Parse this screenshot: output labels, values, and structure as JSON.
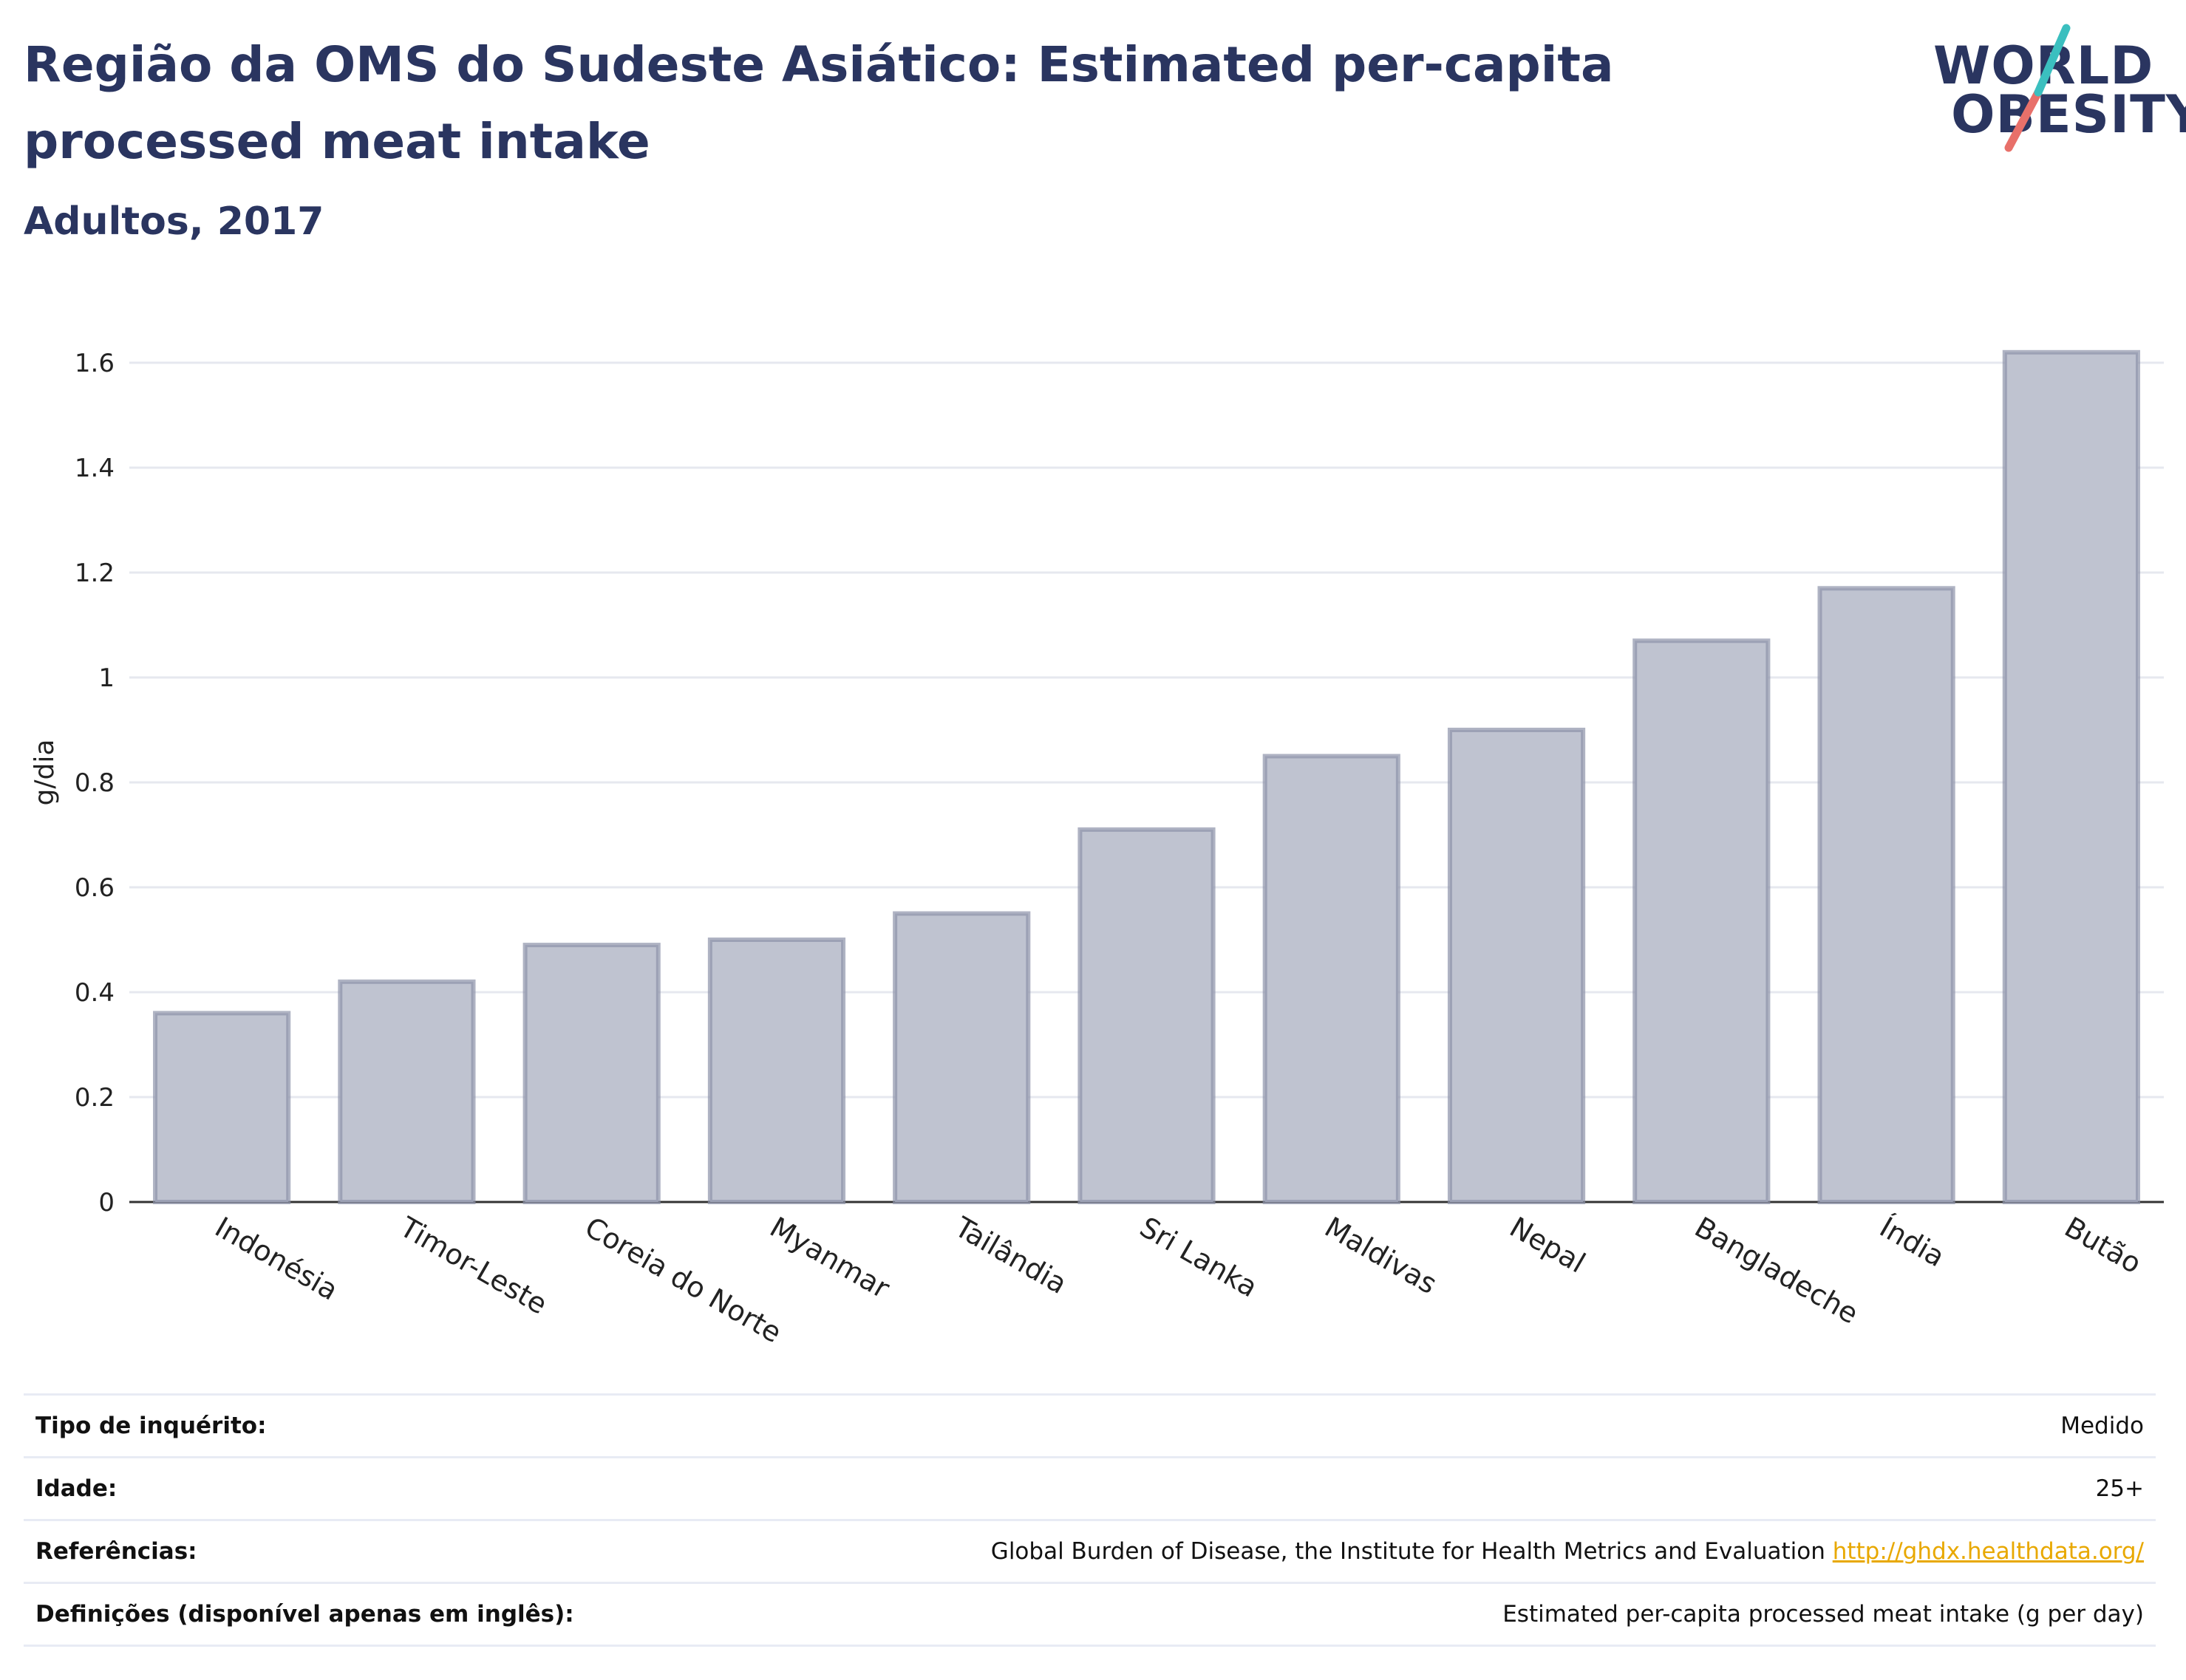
{
  "title": "Região da OMS do Sudeste Asiático: Estimated per-capita processed meat intake",
  "subtitle": "Adultos, 2017",
  "logo": {
    "line1": "WORLD",
    "line2": "OBESITY",
    "accent_teal": "#3bbfbf",
    "accent_coral": "#e8706a"
  },
  "colors": {
    "bar_fill": "#bfc3d0",
    "bar_stroke": "#8d93aa",
    "grid": "#e6e8ef",
    "text_dark": "#2a3560"
  },
  "chart_data": {
    "type": "bar",
    "categories": [
      "Indonésia",
      "Timor-Leste",
      "Coreia do Norte",
      "Myanmar",
      "Tailândia",
      "Sri Lanka",
      "Maldivas",
      "Nepal",
      "Bangladeche",
      "Índia",
      "Butão"
    ],
    "values": [
      0.36,
      0.42,
      0.49,
      0.5,
      0.55,
      0.71,
      0.85,
      0.9,
      1.07,
      1.17,
      1.62
    ],
    "ylabel": "g/dia",
    "xlabel": "",
    "ylim": [
      0,
      1.7
    ],
    "yticks": [
      0,
      0.2,
      0.4,
      0.6,
      0.8,
      1,
      1.2,
      1.4,
      1.6
    ],
    "ytick_labels": [
      "0",
      "0.2",
      "0.4",
      "0.6",
      "0.8",
      "1",
      "1.2",
      "1.4",
      "1.6"
    ],
    "grid": true
  },
  "info": [
    {
      "key": "Tipo de inquérito:",
      "value": "Medido"
    },
    {
      "key": "Idade:",
      "value": "25+"
    },
    {
      "key": "Referências:",
      "value": "Global Burden of Disease, the Institute for Health Metrics and Evaluation",
      "link": "http://ghdx.healthdata.org/"
    },
    {
      "key": "Definições (disponível apenas em inglês):",
      "value": "Estimated per-capita processed meat intake (g per day)"
    }
  ]
}
